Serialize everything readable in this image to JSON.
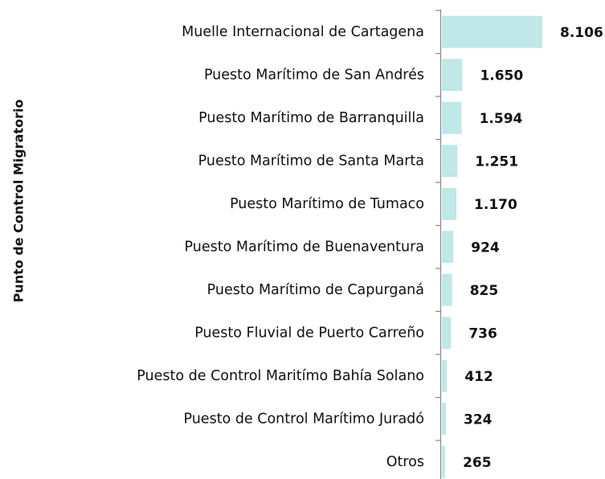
{
  "chart_data": {
    "type": "barh",
    "y_label": "Punto de Control Migratorio",
    "categories": [
      "Muelle Internacional de Cartagena",
      "Puesto Marítimo de San Andrés",
      "Puesto Marítimo de Barranquilla",
      "Puesto Marítimo de Santa Marta",
      "Puesto Marítimo de Tumaco",
      "Puesto Marítimo de Buenaventura",
      "Puesto Marítimo de Capurganá",
      "Puesto Fluvial de Puerto Carreño",
      "Puesto de Control Maritímo Bahía Solano",
      "Puesto de Control Marítimo Juradó",
      "Otros"
    ],
    "values": [
      8106,
      1650,
      1594,
      1251,
      1170,
      924,
      825,
      736,
      412,
      324,
      265
    ],
    "value_labels": [
      "8.106",
      "1.650",
      "1.594",
      "1.251",
      "1.170",
      "924",
      "825",
      "736",
      "412",
      "324",
      "265"
    ],
    "color": "#bfe8e8"
  }
}
